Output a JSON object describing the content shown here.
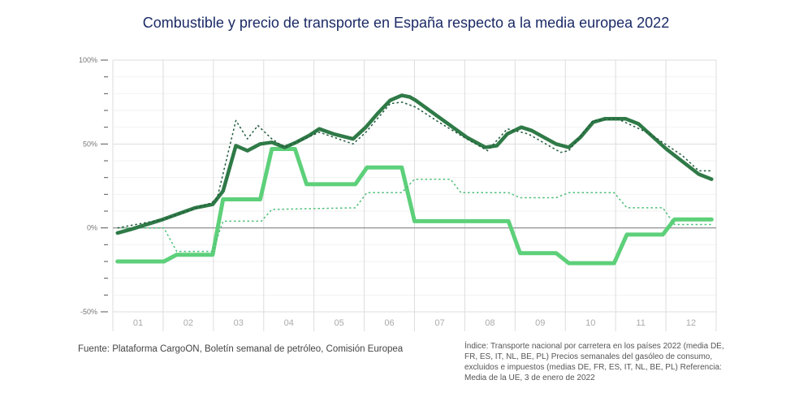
{
  "chart_data": {
    "type": "line",
    "title": "Combustible y precio de transporte en España respecto a la media europea 2022",
    "xlabel": "",
    "ylabel": "",
    "x_unit": "week of 2022",
    "x_range": [
      0,
      52
    ],
    "ylim": [
      -50,
      100
    ],
    "y_ticks": [
      {
        "v": 100,
        "label": "100%"
      },
      {
        "v": 50,
        "label": "50%"
      },
      {
        "v": 0,
        "label": "0%"
      },
      {
        "v": -50,
        "label": "-50%"
      }
    ],
    "x_tick_labels": [
      "01",
      "02",
      "03",
      "04",
      "05",
      "06",
      "07",
      "08",
      "09",
      "10",
      "11",
      "12"
    ],
    "grid": true,
    "series": [
      {
        "style": "solid-dark",
        "color": "#2f7a47",
        "x": [
          0.4,
          1.5,
          4.3,
          7.1,
          8.6,
          9.5,
          10.6,
          11.6,
          12.7,
          13.7,
          14.8,
          15.8,
          16.9,
          17.8,
          19.0,
          20.7,
          21.8,
          22.8,
          23.9,
          24.9,
          25.6,
          26.1,
          28.1,
          30.5,
          32.1,
          33.1,
          34.0,
          35.2,
          36.1,
          38.2,
          39.3,
          40.3,
          41.4,
          42.4,
          44.2,
          45.3,
          47.7,
          50.5,
          51.6
        ],
        "y": [
          -3,
          -1,
          5,
          12,
          14,
          22,
          49,
          46,
          50,
          51,
          48,
          51,
          55,
          59,
          56,
          53,
          60,
          68,
          76,
          79,
          78,
          76,
          66,
          54,
          48,
          49,
          56,
          60,
          58,
          50,
          48,
          54,
          63,
          65,
          65,
          62,
          47,
          32,
          29
        ]
      },
      {
        "style": "dotted-dark",
        "color": "#1f5a3a",
        "x": [
          0.4,
          4.3,
          8.5,
          9.0,
          10.6,
          11.6,
          12.5,
          13.7,
          14.8,
          17.8,
          20.7,
          21.8,
          23.9,
          24.9,
          26.1,
          28.1,
          30.5,
          32.3,
          34.0,
          35.8,
          38.6,
          39.3,
          41.4,
          43.5,
          46.3,
          49.1,
          50.5,
          51.6
        ],
        "y": [
          0,
          5,
          15,
          18,
          64,
          53,
          61,
          53,
          48,
          57,
          50,
          57,
          74,
          75,
          72,
          63,
          53,
          46,
          59,
          56,
          45,
          46,
          64,
          65,
          56,
          43,
          34,
          34
        ]
      },
      {
        "style": "solid-light",
        "color": "#5dd07a",
        "x": [
          0.4,
          4.4,
          5.5,
          8.6,
          9.5,
          12.7,
          13.7,
          15.7,
          16.7,
          20.9,
          21.9,
          24.9,
          26.0,
          34.1,
          35.1,
          38.2,
          39.3,
          43.2,
          44.3,
          47.4,
          48.4,
          51.6
        ],
        "y": [
          -20,
          -20,
          -16,
          -16,
          17,
          17,
          47,
          47,
          26,
          26,
          36,
          36,
          4,
          4,
          -15,
          -15,
          -21,
          -21,
          -4,
          -4,
          5,
          5
        ]
      },
      {
        "style": "dotted-light",
        "color": "#4fbf78",
        "x": [
          0.4,
          4.4,
          5.5,
          8.6,
          9.5,
          12.8,
          13.7,
          20.9,
          21.9,
          24.9,
          26.0,
          29.1,
          30.0,
          34.1,
          35.1,
          38.2,
          39.3,
          43.2,
          44.3,
          47.4,
          48.4,
          51.6
        ],
        "y": [
          0,
          0,
          -14,
          -14,
          4,
          4,
          11,
          12,
          21,
          21,
          29,
          29,
          21,
          21,
          18,
          18,
          21,
          21,
          12,
          12,
          2,
          2
        ]
      }
    ]
  },
  "footer": {
    "source": "Fuente: Plataforma CargoON, Boletín semanal de petróleo, Comisión Europea",
    "note": "Índice: Transporte nacional por carretera en los países 2022 (media DE, FR, ES, IT, NL, BE, PL) Precios semanales del gasóleo de consumo, excluidos e impuestos (medias DE, FR, ES, IT, NL, BE, PL) Referencia: Media de la UE, 3 de enero de 2022"
  }
}
